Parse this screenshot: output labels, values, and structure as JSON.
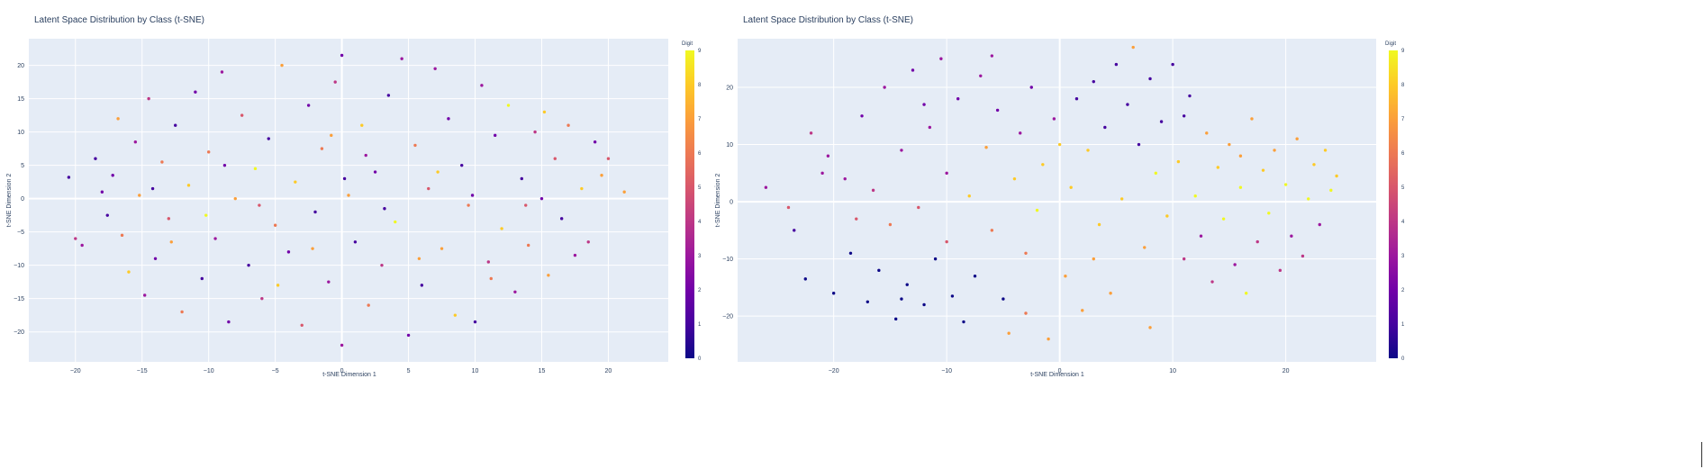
{
  "charts": [
    {
      "title": "Latent Space Distribution by Class (t-SNE)",
      "xlabel": "t-SNE Dimension 1",
      "ylabel": "t-SNE Dimension 2",
      "xlim": [
        -23.5,
        24.5
      ],
      "ylim": [
        -24.5,
        24
      ],
      "xticks": [
        -20,
        -15,
        -10,
        -5,
        0,
        5,
        10,
        15,
        20
      ],
      "yticks": [
        -20,
        -15,
        -10,
        -5,
        0,
        5,
        10,
        15,
        20
      ],
      "colorbar": {
        "title": "Digit",
        "range": [
          0,
          9
        ],
        "ticks": [
          0,
          1,
          2,
          3,
          4,
          5,
          6,
          7,
          8,
          9
        ]
      }
    },
    {
      "title": "Latent Space Distribution by Class (t-SNE)",
      "xlabel": "t-SNE Dimension 1",
      "ylabel": "t-SNE Dimension 2",
      "xlim": [
        -28.5,
        28
      ],
      "ylim": [
        -28,
        28.5
      ],
      "xticks": [
        -20,
        -10,
        0,
        10,
        20
      ],
      "yticks": [
        -20,
        -10,
        0,
        10,
        20
      ],
      "colorbar": {
        "title": "Digit",
        "range": [
          0,
          9
        ],
        "ticks": [
          0,
          1,
          2,
          3,
          4,
          5,
          6,
          7,
          8,
          9
        ]
      }
    }
  ],
  "chart_data": [
    {
      "type": "scatter",
      "title": "Latent Space Distribution by Class (t-SNE)",
      "xlabel": "t-SNE Dimension 1",
      "ylabel": "t-SNE Dimension 2",
      "xlim": [
        -23.5,
        24.5
      ],
      "ylim": [
        -24.5,
        24
      ],
      "colorscale": "plasma",
      "color_range": [
        0,
        9
      ],
      "legend": "colorbar-right",
      "grid": true,
      "points": [
        {
          "x": -20.5,
          "y": 3.2,
          "c": 1
        },
        {
          "x": -20.0,
          "y": -6.0,
          "c": 4
        },
        {
          "x": -19.5,
          "y": -7.0,
          "c": 3
        },
        {
          "x": -18.5,
          "y": 6.0,
          "c": 1
        },
        {
          "x": -18.0,
          "y": 1.0,
          "c": 2
        },
        {
          "x": -17.6,
          "y": -2.5,
          "c": 1
        },
        {
          "x": -17.2,
          "y": 3.5,
          "c": 2
        },
        {
          "x": -16.5,
          "y": -5.5,
          "c": 6
        },
        {
          "x": -16.0,
          "y": -11.0,
          "c": 8
        },
        {
          "x": -15.5,
          "y": 8.5,
          "c": 3
        },
        {
          "x": -15.2,
          "y": 0.5,
          "c": 7
        },
        {
          "x": -14.8,
          "y": -14.5,
          "c": 3
        },
        {
          "x": -14.5,
          "y": 15.0,
          "c": 4
        },
        {
          "x": -14.0,
          "y": -9.0,
          "c": 2
        },
        {
          "x": -13.5,
          "y": 5.5,
          "c": 6
        },
        {
          "x": -13.0,
          "y": -3.0,
          "c": 5
        },
        {
          "x": -12.5,
          "y": 11.0,
          "c": 1
        },
        {
          "x": -12.0,
          "y": -17.0,
          "c": 6
        },
        {
          "x": -11.5,
          "y": 2.0,
          "c": 8
        },
        {
          "x": -11.0,
          "y": 16.0,
          "c": 2
        },
        {
          "x": -10.5,
          "y": -12.0,
          "c": 1
        },
        {
          "x": -10.0,
          "y": 7.0,
          "c": 6
        },
        {
          "x": -9.5,
          "y": -6.0,
          "c": 3
        },
        {
          "x": -9.0,
          "y": 19.0,
          "c": 3
        },
        {
          "x": -8.5,
          "y": -18.5,
          "c": 2
        },
        {
          "x": -8.0,
          "y": 0.0,
          "c": 7
        },
        {
          "x": -7.5,
          "y": 12.5,
          "c": 5
        },
        {
          "x": -7.0,
          "y": -10.0,
          "c": 1
        },
        {
          "x": -6.5,
          "y": 4.5,
          "c": 9
        },
        {
          "x": -6.0,
          "y": -15.0,
          "c": 4
        },
        {
          "x": -5.5,
          "y": 9.0,
          "c": 1
        },
        {
          "x": -5.0,
          "y": -4.0,
          "c": 6
        },
        {
          "x": -4.5,
          "y": 20.0,
          "c": 7
        },
        {
          "x": -4.0,
          "y": -8.0,
          "c": 2
        },
        {
          "x": -3.5,
          "y": 2.5,
          "c": 8
        },
        {
          "x": -3.0,
          "y": -19.0,
          "c": 5
        },
        {
          "x": -2.5,
          "y": 14.0,
          "c": 2
        },
        {
          "x": -2.0,
          "y": -2.0,
          "c": 1
        },
        {
          "x": -1.5,
          "y": 7.5,
          "c": 6
        },
        {
          "x": -1.0,
          "y": -12.5,
          "c": 3
        },
        {
          "x": -0.5,
          "y": 17.5,
          "c": 4
        },
        {
          "x": 0.0,
          "y": 21.5,
          "c": 2
        },
        {
          "x": 0.0,
          "y": -22.0,
          "c": 3
        },
        {
          "x": 0.5,
          "y": 0.5,
          "c": 7
        },
        {
          "x": 1.0,
          "y": -6.5,
          "c": 1
        },
        {
          "x": 1.5,
          "y": 11.0,
          "c": 8
        },
        {
          "x": 2.0,
          "y": -16.0,
          "c": 6
        },
        {
          "x": 2.5,
          "y": 4.0,
          "c": 2
        },
        {
          "x": 3.0,
          "y": -10.0,
          "c": 4
        },
        {
          "x": 3.5,
          "y": 15.5,
          "c": 1
        },
        {
          "x": 4.0,
          "y": -3.5,
          "c": 9
        },
        {
          "x": 4.5,
          "y": 21.0,
          "c": 3
        },
        {
          "x": 5.0,
          "y": -20.5,
          "c": 2
        },
        {
          "x": 5.5,
          "y": 8.0,
          "c": 6
        },
        {
          "x": 6.0,
          "y": -13.0,
          "c": 1
        },
        {
          "x": 6.5,
          "y": 1.5,
          "c": 5
        },
        {
          "x": 7.0,
          "y": 19.5,
          "c": 3
        },
        {
          "x": 7.5,
          "y": -7.5,
          "c": 7
        },
        {
          "x": 8.0,
          "y": 12.0,
          "c": 2
        },
        {
          "x": 8.5,
          "y": -17.5,
          "c": 8
        },
        {
          "x": 9.0,
          "y": 5.0,
          "c": 1
        },
        {
          "x": 9.5,
          "y": -1.0,
          "c": 6
        },
        {
          "x": 10.0,
          "y": -18.5,
          "c": 1
        },
        {
          "x": 10.5,
          "y": 17.0,
          "c": 3
        },
        {
          "x": 11.0,
          "y": -9.5,
          "c": 4
        },
        {
          "x": 11.5,
          "y": 9.5,
          "c": 2
        },
        {
          "x": 12.0,
          "y": -4.5,
          "c": 8
        },
        {
          "x": 12.5,
          "y": 14.0,
          "c": 9
        },
        {
          "x": 13.0,
          "y": -14.0,
          "c": 3
        },
        {
          "x": 13.5,
          "y": 3.0,
          "c": 1
        },
        {
          "x": 14.0,
          "y": -7.0,
          "c": 6
        },
        {
          "x": 14.5,
          "y": 10.0,
          "c": 4
        },
        {
          "x": 15.0,
          "y": 0.0,
          "c": 2
        },
        {
          "x": 15.5,
          "y": -11.5,
          "c": 7
        },
        {
          "x": 16.0,
          "y": 6.0,
          "c": 5
        },
        {
          "x": 16.5,
          "y": -3.0,
          "c": 1
        },
        {
          "x": 17.0,
          "y": 11.0,
          "c": 6
        },
        {
          "x": 17.5,
          "y": -8.5,
          "c": 3
        },
        {
          "x": 18.0,
          "y": 1.5,
          "c": 8
        },
        {
          "x": 18.5,
          "y": -6.5,
          "c": 4
        },
        {
          "x": 19.0,
          "y": 8.5,
          "c": 2
        },
        {
          "x": 19.5,
          "y": 3.5,
          "c": 7
        },
        {
          "x": 20.0,
          "y": 6.0,
          "c": 5
        },
        {
          "x": 21.2,
          "y": 1.0,
          "c": 7
        },
        {
          "x": -16.8,
          "y": 12.0,
          "c": 7
        },
        {
          "x": -12.8,
          "y": -6.5,
          "c": 7
        },
        {
          "x": -8.8,
          "y": 5.0,
          "c": 2
        },
        {
          "x": -4.8,
          "y": -13.0,
          "c": 8
        },
        {
          "x": -0.8,
          "y": 9.5,
          "c": 7
        },
        {
          "x": 3.2,
          "y": -1.5,
          "c": 1
        },
        {
          "x": 7.2,
          "y": 4.0,
          "c": 8
        },
        {
          "x": 11.2,
          "y": -12.0,
          "c": 6
        },
        {
          "x": 15.2,
          "y": 13.0,
          "c": 8
        },
        {
          "x": -14.2,
          "y": 1.5,
          "c": 1
        },
        {
          "x": -6.2,
          "y": -1.0,
          "c": 5
        },
        {
          "x": 1.8,
          "y": 6.5,
          "c": 3
        },
        {
          "x": 5.8,
          "y": -9.0,
          "c": 7
        },
        {
          "x": 9.8,
          "y": 0.5,
          "c": 2
        },
        {
          "x": -2.2,
          "y": -7.5,
          "c": 7
        },
        {
          "x": -10.2,
          "y": -2.5,
          "c": 9
        },
        {
          "x": 13.8,
          "y": -1.0,
          "c": 5
        },
        {
          "x": 0.2,
          "y": 3.0,
          "c": 1
        }
      ]
    },
    {
      "type": "scatter",
      "title": "Latent Space Distribution by Class (t-SNE)",
      "xlabel": "t-SNE Dimension 1",
      "ylabel": "t-SNE Dimension 2",
      "xlim": [
        -28.5,
        28
      ],
      "ylim": [
        -28,
        28.5
      ],
      "colorscale": "plasma",
      "color_range": [
        0,
        9
      ],
      "legend": "colorbar-right",
      "grid": true,
      "points": [
        {
          "x": -26.0,
          "y": 2.5,
          "c": 3
        },
        {
          "x": -24.0,
          "y": -1.0,
          "c": 5
        },
        {
          "x": -23.5,
          "y": -5.0,
          "c": 1
        },
        {
          "x": -22.5,
          "y": -13.5,
          "c": 0
        },
        {
          "x": -22.0,
          "y": 12.0,
          "c": 4
        },
        {
          "x": -20.5,
          "y": 8.0,
          "c": 3
        },
        {
          "x": -20.0,
          "y": -16.0,
          "c": 0
        },
        {
          "x": -19.0,
          "y": 4.0,
          "c": 3
        },
        {
          "x": -18.5,
          "y": -9.0,
          "c": 0
        },
        {
          "x": -17.5,
          "y": 15.0,
          "c": 2
        },
        {
          "x": -17.0,
          "y": -17.5,
          "c": 0
        },
        {
          "x": -16.5,
          "y": 2.0,
          "c": 4
        },
        {
          "x": -16.0,
          "y": -12.0,
          "c": 0
        },
        {
          "x": -15.5,
          "y": 20.0,
          "c": 3
        },
        {
          "x": -15.0,
          "y": -4.0,
          "c": 6
        },
        {
          "x": -14.5,
          "y": -20.5,
          "c": 0
        },
        {
          "x": -14.0,
          "y": 9.0,
          "c": 3
        },
        {
          "x": -13.5,
          "y": -14.5,
          "c": 0
        },
        {
          "x": -13.0,
          "y": 23.0,
          "c": 2
        },
        {
          "x": -12.5,
          "y": -1.0,
          "c": 5
        },
        {
          "x": -12.0,
          "y": -18.0,
          "c": 0
        },
        {
          "x": -11.5,
          "y": 13.0,
          "c": 3
        },
        {
          "x": -11.0,
          "y": -10.0,
          "c": 0
        },
        {
          "x": -10.5,
          "y": 25.0,
          "c": 3
        },
        {
          "x": -10.0,
          "y": 5.0,
          "c": 3
        },
        {
          "x": -9.5,
          "y": -16.5,
          "c": 0
        },
        {
          "x": -9.0,
          "y": 18.0,
          "c": 2
        },
        {
          "x": -8.5,
          "y": -21.0,
          "c": 0
        },
        {
          "x": -8.0,
          "y": 1.0,
          "c": 8
        },
        {
          "x": -7.5,
          "y": -13.0,
          "c": 0
        },
        {
          "x": -7.0,
          "y": 22.0,
          "c": 3
        },
        {
          "x": -6.5,
          "y": 9.5,
          "c": 7
        },
        {
          "x": -6.0,
          "y": -5.0,
          "c": 6
        },
        {
          "x": -5.5,
          "y": 16.0,
          "c": 2
        },
        {
          "x": -5.0,
          "y": -17.0,
          "c": 0
        },
        {
          "x": -4.5,
          "y": -23.0,
          "c": 7
        },
        {
          "x": -4.0,
          "y": 4.0,
          "c": 8
        },
        {
          "x": -3.5,
          "y": 12.0,
          "c": 3
        },
        {
          "x": -3.0,
          "y": -9.0,
          "c": 6
        },
        {
          "x": -2.5,
          "y": 20.0,
          "c": 2
        },
        {
          "x": -2.0,
          "y": -1.5,
          "c": 9
        },
        {
          "x": -1.5,
          "y": 6.5,
          "c": 8
        },
        {
          "x": -1.0,
          "y": -24.0,
          "c": 7
        },
        {
          "x": -0.5,
          "y": 14.5,
          "c": 3
        },
        {
          "x": 0.5,
          "y": -13.0,
          "c": 7
        },
        {
          "x": 1.0,
          "y": 2.5,
          "c": 8
        },
        {
          "x": 1.5,
          "y": 18.0,
          "c": 1
        },
        {
          "x": 2.0,
          "y": -19.0,
          "c": 7
        },
        {
          "x": 2.5,
          "y": 9.0,
          "c": 8
        },
        {
          "x": 3.0,
          "y": 21.0,
          "c": 1
        },
        {
          "x": 3.5,
          "y": -4.0,
          "c": 8
        },
        {
          "x": 4.0,
          "y": 13.0,
          "c": 1
        },
        {
          "x": 4.5,
          "y": -16.0,
          "c": 7
        },
        {
          "x": 5.0,
          "y": 24.0,
          "c": 1
        },
        {
          "x": 5.5,
          "y": 0.5,
          "c": 8
        },
        {
          "x": 6.0,
          "y": 17.0,
          "c": 1
        },
        {
          "x": 6.5,
          "y": 27.0,
          "c": 7
        },
        {
          "x": 7.0,
          "y": 10.0,
          "c": 1
        },
        {
          "x": 7.5,
          "y": -8.0,
          "c": 7
        },
        {
          "x": 8.0,
          "y": 21.5,
          "c": 1
        },
        {
          "x": 8.5,
          "y": 5.0,
          "c": 9
        },
        {
          "x": 9.0,
          "y": 14.0,
          "c": 1
        },
        {
          "x": 9.5,
          "y": -2.5,
          "c": 8
        },
        {
          "x": 10.0,
          "y": 24.0,
          "c": 1
        },
        {
          "x": 10.5,
          "y": 7.0,
          "c": 8
        },
        {
          "x": 11.0,
          "y": -10.0,
          "c": 4
        },
        {
          "x": 11.5,
          "y": 18.5,
          "c": 1
        },
        {
          "x": 12.0,
          "y": 1.0,
          "c": 9
        },
        {
          "x": 12.5,
          "y": -6.0,
          "c": 3
        },
        {
          "x": 13.0,
          "y": 12.0,
          "c": 7
        },
        {
          "x": 13.5,
          "y": -14.0,
          "c": 4
        },
        {
          "x": 14.0,
          "y": 6.0,
          "c": 8
        },
        {
          "x": 14.5,
          "y": -3.0,
          "c": 9
        },
        {
          "x": 15.0,
          "y": 10.0,
          "c": 7
        },
        {
          "x": 15.5,
          "y": -11.0,
          "c": 3
        },
        {
          "x": 16.0,
          "y": 2.5,
          "c": 9
        },
        {
          "x": 16.5,
          "y": -16.0,
          "c": 9
        },
        {
          "x": 17.0,
          "y": 14.5,
          "c": 7
        },
        {
          "x": 17.5,
          "y": -7.0,
          "c": 4
        },
        {
          "x": 18.0,
          "y": 5.5,
          "c": 8
        },
        {
          "x": 18.5,
          "y": -2.0,
          "c": 9
        },
        {
          "x": 19.0,
          "y": 9.0,
          "c": 7
        },
        {
          "x": 19.5,
          "y": -12.0,
          "c": 4
        },
        {
          "x": 20.0,
          "y": 3.0,
          "c": 9
        },
        {
          "x": 20.5,
          "y": -6.0,
          "c": 3
        },
        {
          "x": 21.0,
          "y": 11.0,
          "c": 7
        },
        {
          "x": 21.5,
          "y": -9.5,
          "c": 4
        },
        {
          "x": 22.0,
          "y": 0.5,
          "c": 9
        },
        {
          "x": 22.5,
          "y": 6.5,
          "c": 8
        },
        {
          "x": 23.0,
          "y": -4.0,
          "c": 3
        },
        {
          "x": 23.5,
          "y": 9.0,
          "c": 8
        },
        {
          "x": 24.0,
          "y": 2.0,
          "c": 9
        },
        {
          "x": 24.5,
          "y": 4.5,
          "c": 8
        },
        {
          "x": -21.0,
          "y": 5.0,
          "c": 3
        },
        {
          "x": -18.0,
          "y": -3.0,
          "c": 5
        },
        {
          "x": -12.0,
          "y": 17.0,
          "c": 2
        },
        {
          "x": -6.0,
          "y": 25.5,
          "c": 3
        },
        {
          "x": -3.0,
          "y": -19.5,
          "c": 6
        },
        {
          "x": 3.0,
          "y": -10.0,
          "c": 7
        },
        {
          "x": 8.0,
          "y": -22.0,
          "c": 7
        },
        {
          "x": 11.0,
          "y": 15.0,
          "c": 1
        },
        {
          "x": 16.0,
          "y": 8.0,
          "c": 7
        },
        {
          "x": -10.0,
          "y": -7.0,
          "c": 5
        },
        {
          "x": -14.0,
          "y": -17.0,
          "c": 0
        },
        {
          "x": 0.0,
          "y": 10.0,
          "c": 8
        }
      ]
    }
  ]
}
